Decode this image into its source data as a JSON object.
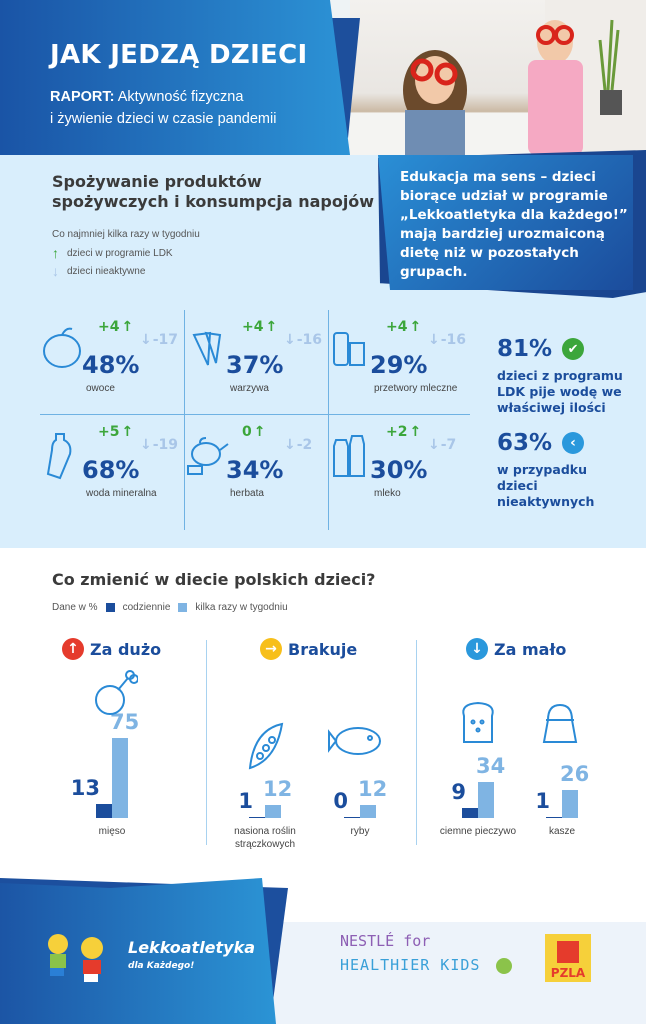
{
  "header": {
    "title": "JAK JEDZĄ DZIECI",
    "report_label": "RAPORT:",
    "subtitle_1": "Aktywność fizyczna",
    "subtitle_2": "i żywienie dzieci w czasie pandemii"
  },
  "consumption": {
    "title_1": "Spożywanie produktów",
    "title_2": "spożywczych i konsumpcja napojów",
    "note": "Co najmniej kilka razy w tygodniu",
    "legend_up": "dzieci w programie LDK",
    "legend_down": "dzieci nieaktywne",
    "callout": "Edukacja ma sens – dzieci biorące udział w programie „Lekkoatletyka dla każdego!” mają bardziej urozmaiconą dietę niż w pozostałych grupach.",
    "items": [
      {
        "label": "owoce",
        "pct": "48%",
        "up": "+4",
        "down": "-17",
        "icon": "apple-icon"
      },
      {
        "label": "warzywa",
        "pct": "37%",
        "up": "+4",
        "down": "-16",
        "icon": "carrot-icon"
      },
      {
        "label": "przetwory mleczne",
        "pct": "29%",
        "up": "+4",
        "down": "-16",
        "icon": "dairy-icon"
      },
      {
        "label": "woda mineralna",
        "pct": "68%",
        "up": "+5",
        "down": "-19",
        "icon": "water-bottle-icon"
      },
      {
        "label": "herbata",
        "pct": "34%",
        "up": "0",
        "down": "-2",
        "icon": "teapot-icon"
      },
      {
        "label": "mleko",
        "pct": "30%",
        "up": "+2",
        "down": "-7",
        "icon": "milk-bottle-icon"
      }
    ],
    "stat1": {
      "value": "81%",
      "text": "dzieci z programu LDK pije wodę we właściwej ilości"
    },
    "stat2": {
      "value": "63%",
      "text": "w przypadku dzieci nieaktywnych"
    }
  },
  "diet": {
    "title": "Co zmienić w diecie polskich dzieci?",
    "legend_unit": "Dane w %",
    "legend_daily": "codziennie",
    "legend_weekly": "kilka razy w tygodniu",
    "colors": {
      "daily": "#1b4d9c",
      "weekly": "#7fb4e3"
    },
    "groups": [
      {
        "label": "Za dużo",
        "color": "#e53b2c",
        "glyph": "↑"
      },
      {
        "label": "Brakuje",
        "color": "#f7bf1a",
        "glyph": "→"
      },
      {
        "label": "Za mało",
        "color": "#2a98dc",
        "glyph": "↓"
      }
    ],
    "items": [
      {
        "label": "mięso",
        "daily": 13,
        "weekly": 75
      },
      {
        "label": "nasiona roślin strączkowych",
        "daily": 1,
        "weekly": 12
      },
      {
        "label": "ryby",
        "daily": 0,
        "weekly": 12
      },
      {
        "label": "ciemne pieczywo",
        "daily": 9,
        "weekly": 34
      },
      {
        "label": "kasze",
        "daily": 1,
        "weekly": 26
      }
    ]
  },
  "footer": {
    "ldk_title": "Lekkoatletyka",
    "ldk_sub": "dla Każdego!",
    "nestle_1": "NESTLÉ for",
    "nestle_2": "HEALTHIER KIDS",
    "pzla": "PZLA"
  }
}
